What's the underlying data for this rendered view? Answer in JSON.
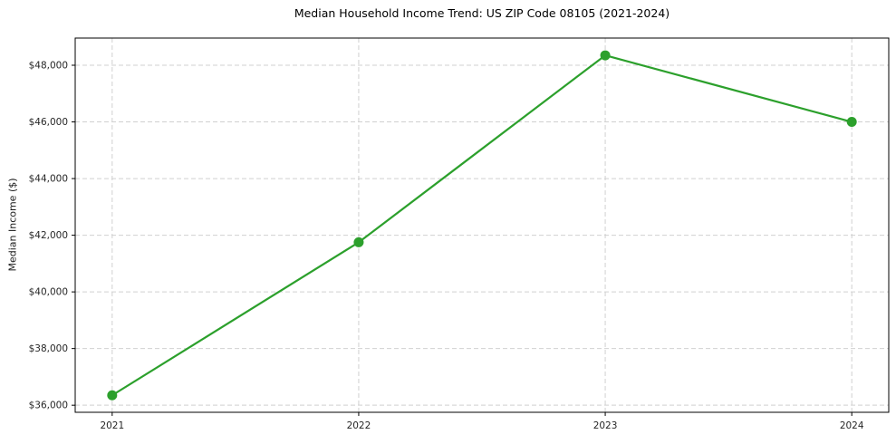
{
  "chart_data": {
    "type": "line",
    "title": "Median Household Income Trend: US ZIP Code 08105 (2021-2024)",
    "xlabel": "",
    "ylabel": "Median Income ($)",
    "x": [
      2021,
      2022,
      2023,
      2024
    ],
    "values": [
      36350,
      41750,
      48350,
      46000
    ],
    "xticks": {
      "values": [
        2021,
        2022,
        2023,
        2024
      ],
      "labels": [
        "2021",
        "2022",
        "2023",
        "2024"
      ]
    },
    "yticks": {
      "values": [
        36000,
        38000,
        40000,
        42000,
        44000,
        46000,
        48000
      ],
      "labels": [
        "$36,000",
        "$38,000",
        "$40,000",
        "$42,000",
        "$44,000",
        "$46,000",
        "$48,000"
      ]
    },
    "xlim": [
      2020.85,
      2024.15
    ],
    "ylim": [
      35750,
      48960
    ],
    "grid": {
      "on": true,
      "line_style": "dashed",
      "color": "#d0d0d0"
    },
    "legend": "none",
    "colors": {
      "line": "#2ca02c",
      "marker": "#2ca02c",
      "spine": "#000000",
      "tick_text": "#262626",
      "title_text": "#000000",
      "background": "#ffffff"
    }
  }
}
